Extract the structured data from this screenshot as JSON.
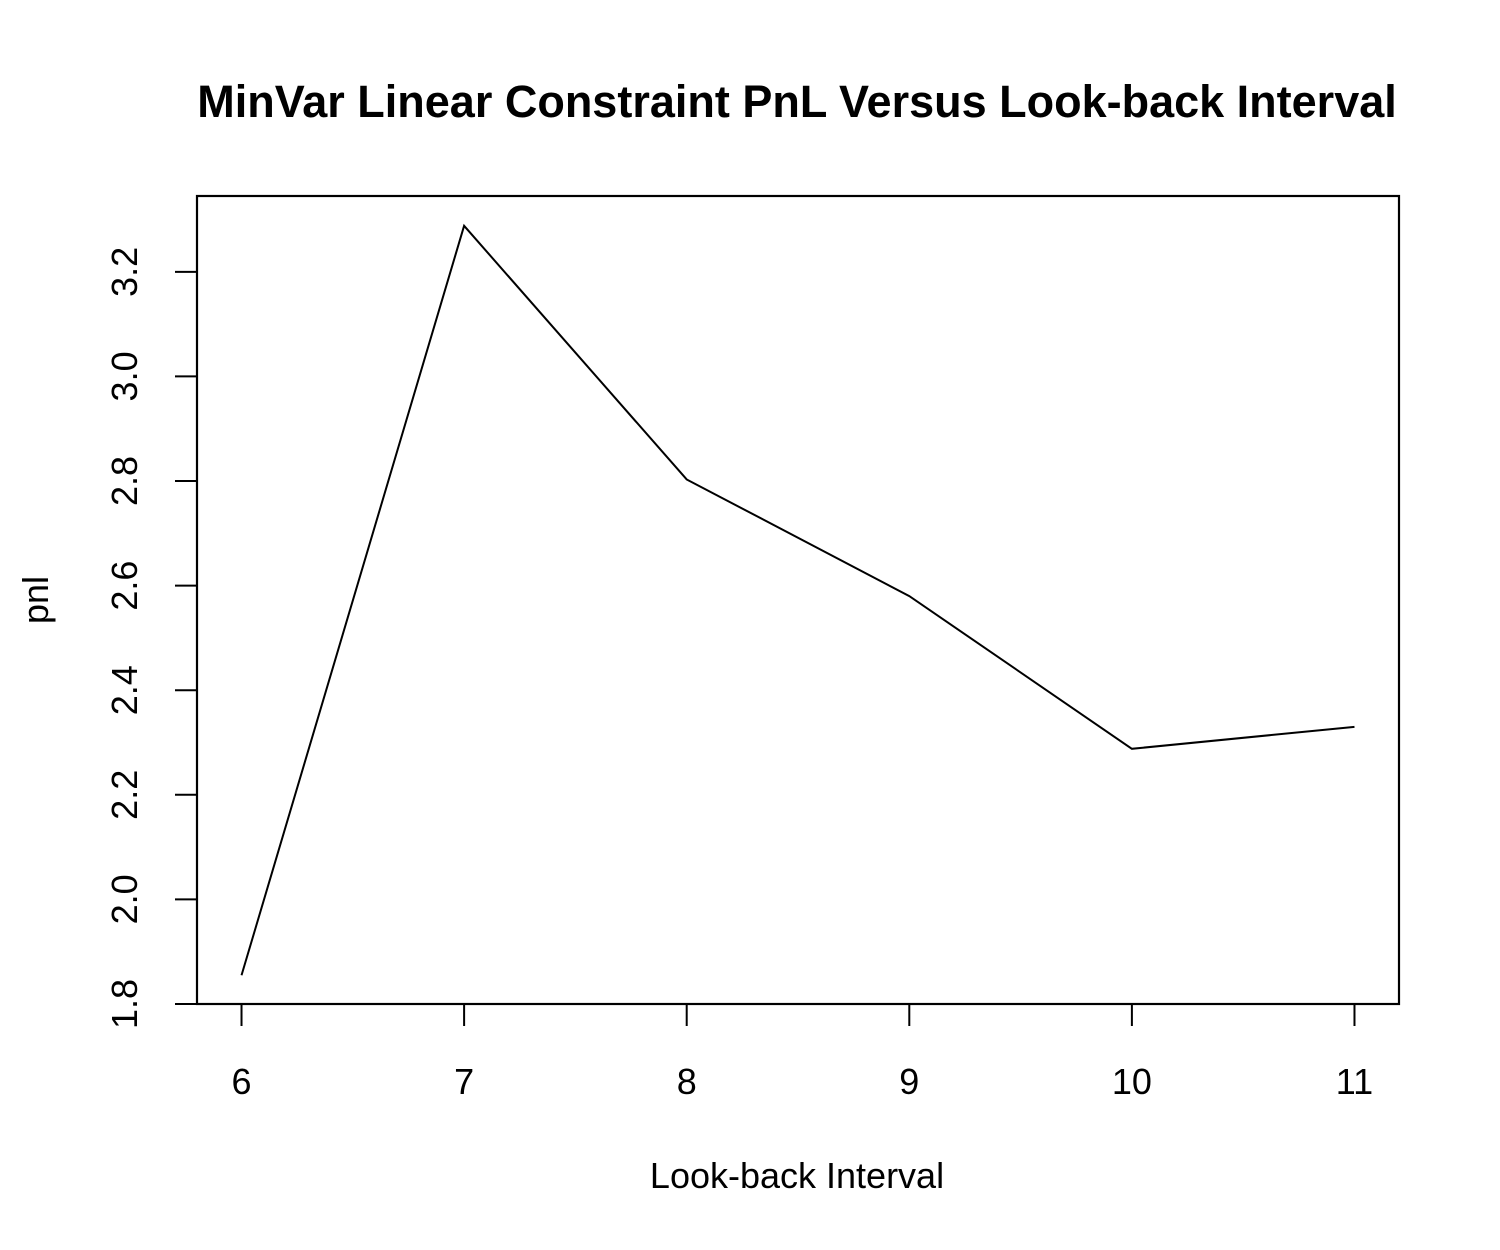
{
  "chart_data": {
    "type": "line",
    "title": "MinVar Linear Constraint PnL Versus Look-back Interval",
    "xlabel": "Look-back Interval",
    "ylabel": "pnl",
    "x": [
      6,
      7,
      8,
      9,
      10,
      11
    ],
    "series": [
      {
        "values": [
          1.855,
          3.288,
          2.803,
          2.58,
          2.288,
          2.33
        ]
      }
    ],
    "xlim": [
      5.8,
      11.2
    ],
    "ylim": [
      1.8,
      3.345
    ],
    "xticks": [
      "6",
      "7",
      "8",
      "9",
      "10",
      "11"
    ],
    "yticks": [
      "1.8",
      "2.0",
      "2.2",
      "2.4",
      "2.6",
      "2.8",
      "3.0",
      "3.2"
    ],
    "grid": false,
    "legend": "none",
    "line_color": "#000000"
  }
}
